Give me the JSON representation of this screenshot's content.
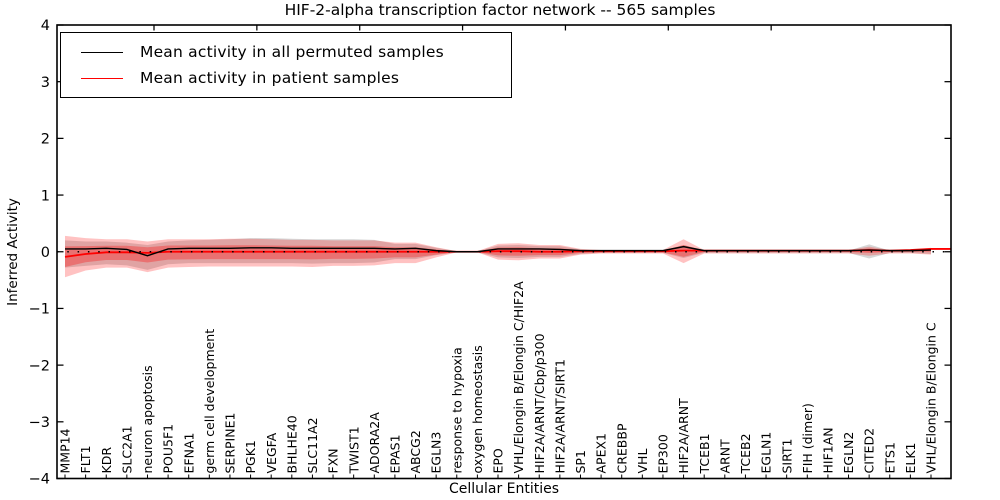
{
  "title": "HIF-2-alpha transcription factor network -- 565 samples",
  "legend": {
    "entries": [
      {
        "label": "Mean activity in all permuted samples",
        "color": "#000000"
      },
      {
        "label": "Mean activity in patient samples",
        "color": "#ff0000"
      }
    ]
  },
  "chart_data": {
    "type": "line",
    "title": "HIF-2-alpha transcription factor network -- 565 samples",
    "xlabel": "Cellular Entities",
    "ylabel": "Inferred Activity",
    "ylim": [
      -4,
      4
    ],
    "yticks": [
      4,
      3,
      2,
      1,
      0,
      -1,
      -2,
      -3,
      -4
    ],
    "yticklabels": [
      "4",
      "3",
      "2",
      "1",
      "0",
      "−1",
      "−2",
      "−3",
      "−4"
    ],
    "grid": false,
    "legend_position": "upper left",
    "zero_line": true,
    "categories": [
      "MMP14",
      "FLT1",
      "KDR",
      "SLC2A1",
      "neuron apoptosis",
      "POU5F1",
      "EFNA1",
      "germ cell development",
      "SERPINE1",
      "PGK1",
      "VEGFA",
      "BHLHE40",
      "SLC11A2",
      "FXN",
      "TWIST1",
      "ADORA2A",
      "EPAS1",
      "ABCG2",
      "EGLN3",
      "response to hypoxia",
      "oxygen homeostasis",
      "EPO",
      "VHL/Elongin B/Elongin C/HIF2A",
      "HIF2A/ARNT/Cbp/p300",
      "HIF2A/ARNT/SIRT1",
      "SP1",
      "APEX1",
      "CREBBP",
      "VHL",
      "EP300",
      "HIF2A/ARNT",
      "TCEB1",
      "ARNT",
      "TCEB2",
      "EGLN1",
      "SIRT1",
      "FIH (dimer)",
      "HIF1AN",
      "EGLN2",
      "CITED2",
      "ETS1",
      "ELK1",
      "VHL/Elongin B/Elongin C"
    ],
    "series": [
      {
        "name": "Mean activity in all permuted samples",
        "color": "#000000",
        "values": [
          0.05,
          0.05,
          0.06,
          0.04,
          -0.07,
          0.05,
          0.06,
          0.06,
          0.06,
          0.07,
          0.07,
          0.06,
          0.06,
          0.06,
          0.06,
          0.06,
          0.05,
          0.06,
          0.02,
          0.0,
          0.0,
          0.05,
          0.05,
          0.05,
          0.04,
          0.02,
          0.02,
          0.02,
          0.02,
          0.02,
          0.09,
          0.02,
          0.02,
          0.02,
          0.02,
          0.02,
          0.02,
          0.02,
          0.02,
          0.03,
          0.02,
          0.02,
          0.03
        ]
      },
      {
        "name": "Mean activity in patient samples",
        "color": "#ff0000",
        "values": [
          -0.09,
          -0.04,
          -0.01,
          -0.01,
          -0.02,
          0.0,
          0.0,
          0.0,
          0.0,
          0.0,
          0.0,
          0.0,
          0.0,
          0.0,
          0.0,
          0.0,
          0.0,
          0.0,
          0.0,
          0.0,
          0.0,
          0.01,
          0.01,
          0.0,
          0.0,
          0.01,
          0.01,
          0.01,
          0.01,
          0.01,
          0.02,
          0.02,
          0.02,
          0.02,
          0.02,
          0.02,
          0.02,
          0.02,
          0.02,
          0.03,
          0.02,
          0.03,
          0.05
        ]
      }
    ],
    "bands": [
      {
        "name": "permuted-samples-std",
        "color": "rgba(0,0,0,0.16)",
        "upper": [
          0.2,
          0.18,
          0.18,
          0.16,
          0.12,
          0.18,
          0.2,
          0.21,
          0.22,
          0.24,
          0.24,
          0.23,
          0.22,
          0.22,
          0.22,
          0.21,
          0.14,
          0.14,
          0.07,
          0.01,
          0.01,
          0.11,
          0.12,
          0.1,
          0.1,
          0.04,
          0.02,
          0.02,
          0.02,
          0.02,
          0.12,
          0.02,
          0.02,
          0.02,
          0.02,
          0.02,
          0.02,
          0.02,
          0.02,
          0.13,
          0.02,
          0.02,
          0.05
        ],
        "lower": [
          -0.28,
          -0.25,
          -0.22,
          -0.24,
          -0.32,
          -0.22,
          -0.2,
          -0.2,
          -0.2,
          -0.2,
          -0.2,
          -0.2,
          -0.21,
          -0.2,
          -0.2,
          -0.19,
          -0.13,
          -0.13,
          -0.06,
          -0.01,
          -0.01,
          -0.1,
          -0.11,
          -0.09,
          -0.09,
          -0.04,
          -0.02,
          -0.02,
          -0.02,
          -0.02,
          -0.11,
          -0.02,
          -0.02,
          -0.02,
          -0.02,
          -0.02,
          -0.02,
          -0.02,
          -0.02,
          -0.12,
          -0.02,
          -0.02,
          -0.04
        ]
      },
      {
        "name": "patient-samples-std",
        "color": "rgba(255,0,0,0.24)",
        "upper": [
          0.28,
          0.24,
          0.22,
          0.22,
          0.18,
          0.22,
          0.22,
          0.22,
          0.23,
          0.23,
          0.22,
          0.21,
          0.21,
          0.2,
          0.2,
          0.2,
          0.16,
          0.16,
          0.08,
          0.01,
          0.01,
          0.14,
          0.15,
          0.12,
          0.12,
          0.05,
          0.03,
          0.03,
          0.03,
          0.03,
          0.22,
          0.03,
          0.03,
          0.03,
          0.03,
          0.03,
          0.03,
          0.03,
          0.03,
          0.09,
          0.03,
          0.03,
          0.07
        ],
        "lower": [
          -0.45,
          -0.33,
          -0.28,
          -0.28,
          -0.36,
          -0.28,
          -0.27,
          -0.26,
          -0.26,
          -0.26,
          -0.26,
          -0.26,
          -0.27,
          -0.25,
          -0.25,
          -0.24,
          -0.2,
          -0.2,
          -0.1,
          -0.01,
          -0.01,
          -0.14,
          -0.15,
          -0.12,
          -0.12,
          -0.05,
          -0.03,
          -0.03,
          -0.03,
          -0.03,
          -0.2,
          -0.03,
          -0.03,
          -0.03,
          -0.03,
          -0.03,
          -0.03,
          -0.03,
          -0.03,
          -0.07,
          -0.03,
          -0.03,
          -0.05
        ]
      }
    ]
  }
}
